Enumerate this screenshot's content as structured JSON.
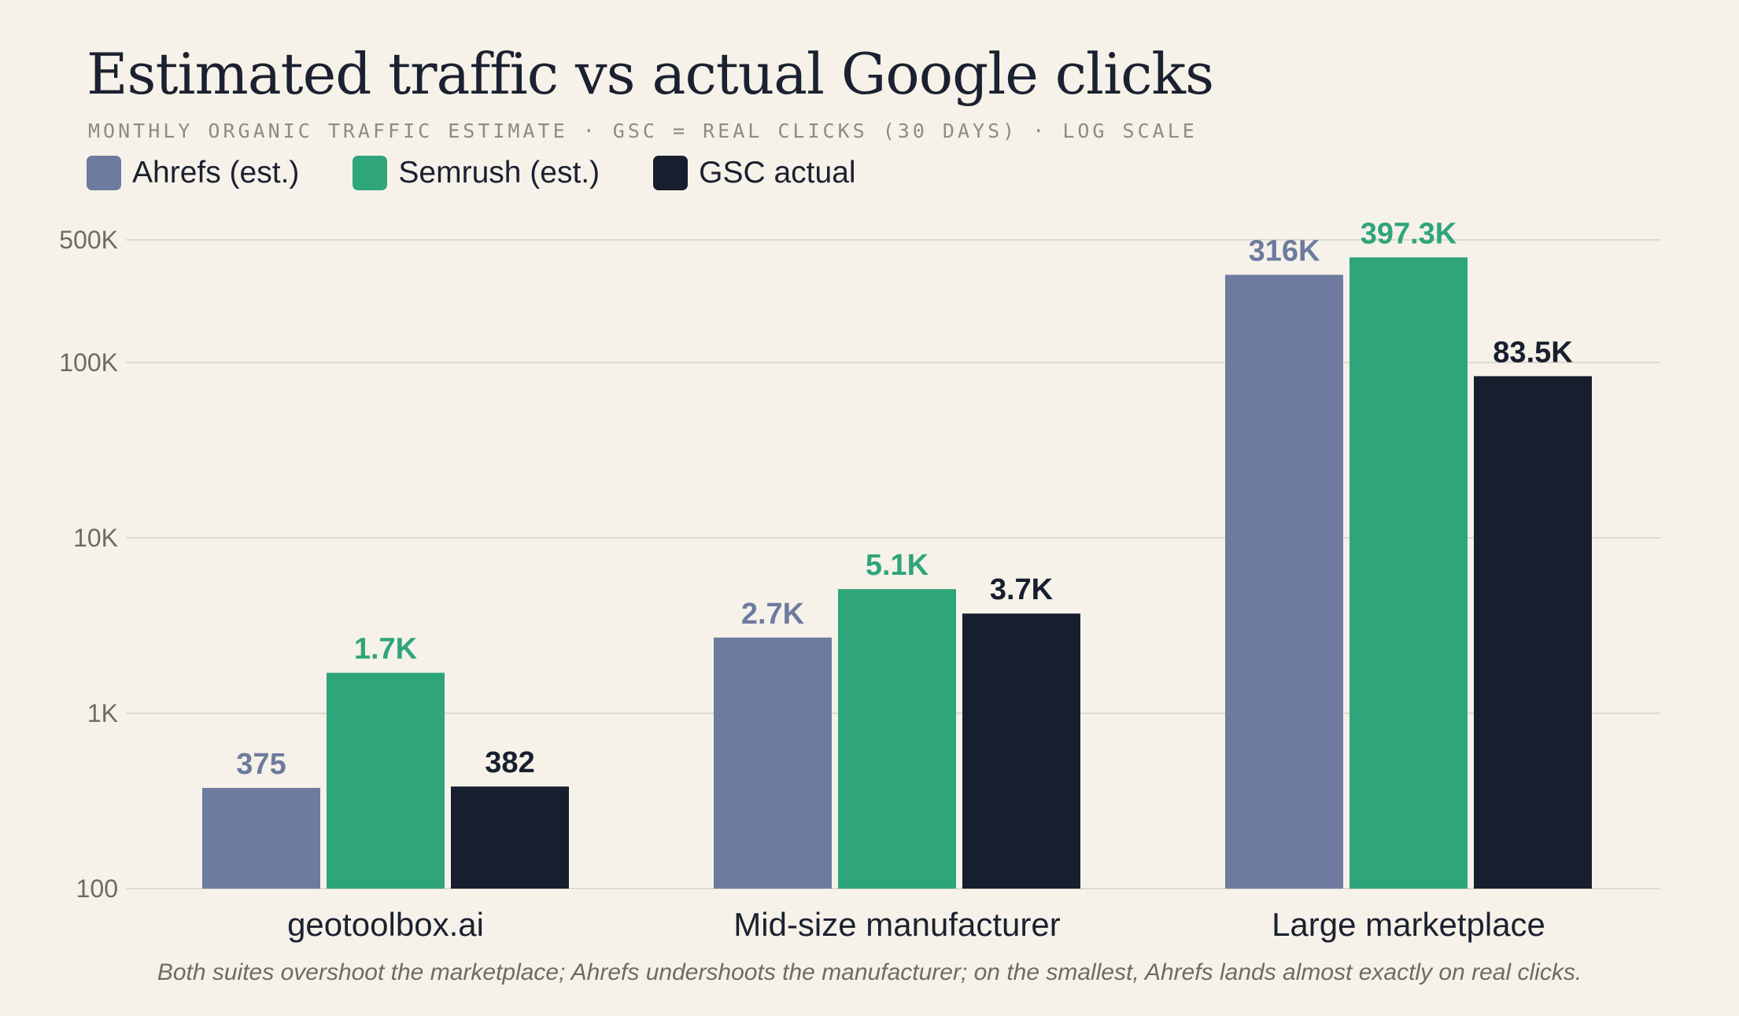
{
  "header": {
    "title": "Estimated traffic vs actual Google clicks",
    "subtitle": "MONTHLY ORGANIC TRAFFIC ESTIMATE  ·  GSC = REAL CLICKS (30 DAYS)  ·  LOG SCALE"
  },
  "legend": [
    {
      "label": "Ahrefs (est.)",
      "color": "#6e7b9f"
    },
    {
      "label": "Semrush (est.)",
      "color": "#2fa57a"
    },
    {
      "label": "GSC actual",
      "color": "#171f2e"
    }
  ],
  "footnote": "Both suites overshoot the marketplace; Ahrefs undershoots the manufacturer; on the smallest, Ahrefs lands almost exactly on real clicks.",
  "chart_data": {
    "type": "bar",
    "scale": "log",
    "ylim": [
      100,
      500000
    ],
    "grid": true,
    "legend_position": "top-left",
    "title": "Estimated traffic vs actual Google clicks",
    "subtitle": "MONTHLY ORGANIC TRAFFIC ESTIMATE  ·  GSC = REAL CLICKS (30 DAYS)  ·  LOG SCALE",
    "y_ticks": [
      {
        "value": 100,
        "label": "100"
      },
      {
        "value": 1000,
        "label": "1K"
      },
      {
        "value": 10000,
        "label": "10K"
      },
      {
        "value": 100000,
        "label": "100K"
      },
      {
        "value": 500000,
        "label": "500K"
      }
    ],
    "categories": [
      "geotoolbox.ai",
      "Mid-size manufacturer",
      "Large marketplace"
    ],
    "series": [
      {
        "name": "Ahrefs (est.)",
        "color": "#6e7b9f",
        "values": [
          375,
          2700,
          316000
        ],
        "labels": [
          "375",
          "2.7K",
          "316K"
        ]
      },
      {
        "name": "Semrush (est.)",
        "color": "#2fa57a",
        "values": [
          1700,
          5100,
          397300
        ],
        "labels": [
          "1.7K",
          "5.1K",
          "397.3K"
        ]
      },
      {
        "name": "GSC actual",
        "color": "#171f2e",
        "values": [
          382,
          3700,
          83500
        ],
        "labels": [
          "382",
          "3.7K",
          "83.5K"
        ]
      }
    ]
  }
}
